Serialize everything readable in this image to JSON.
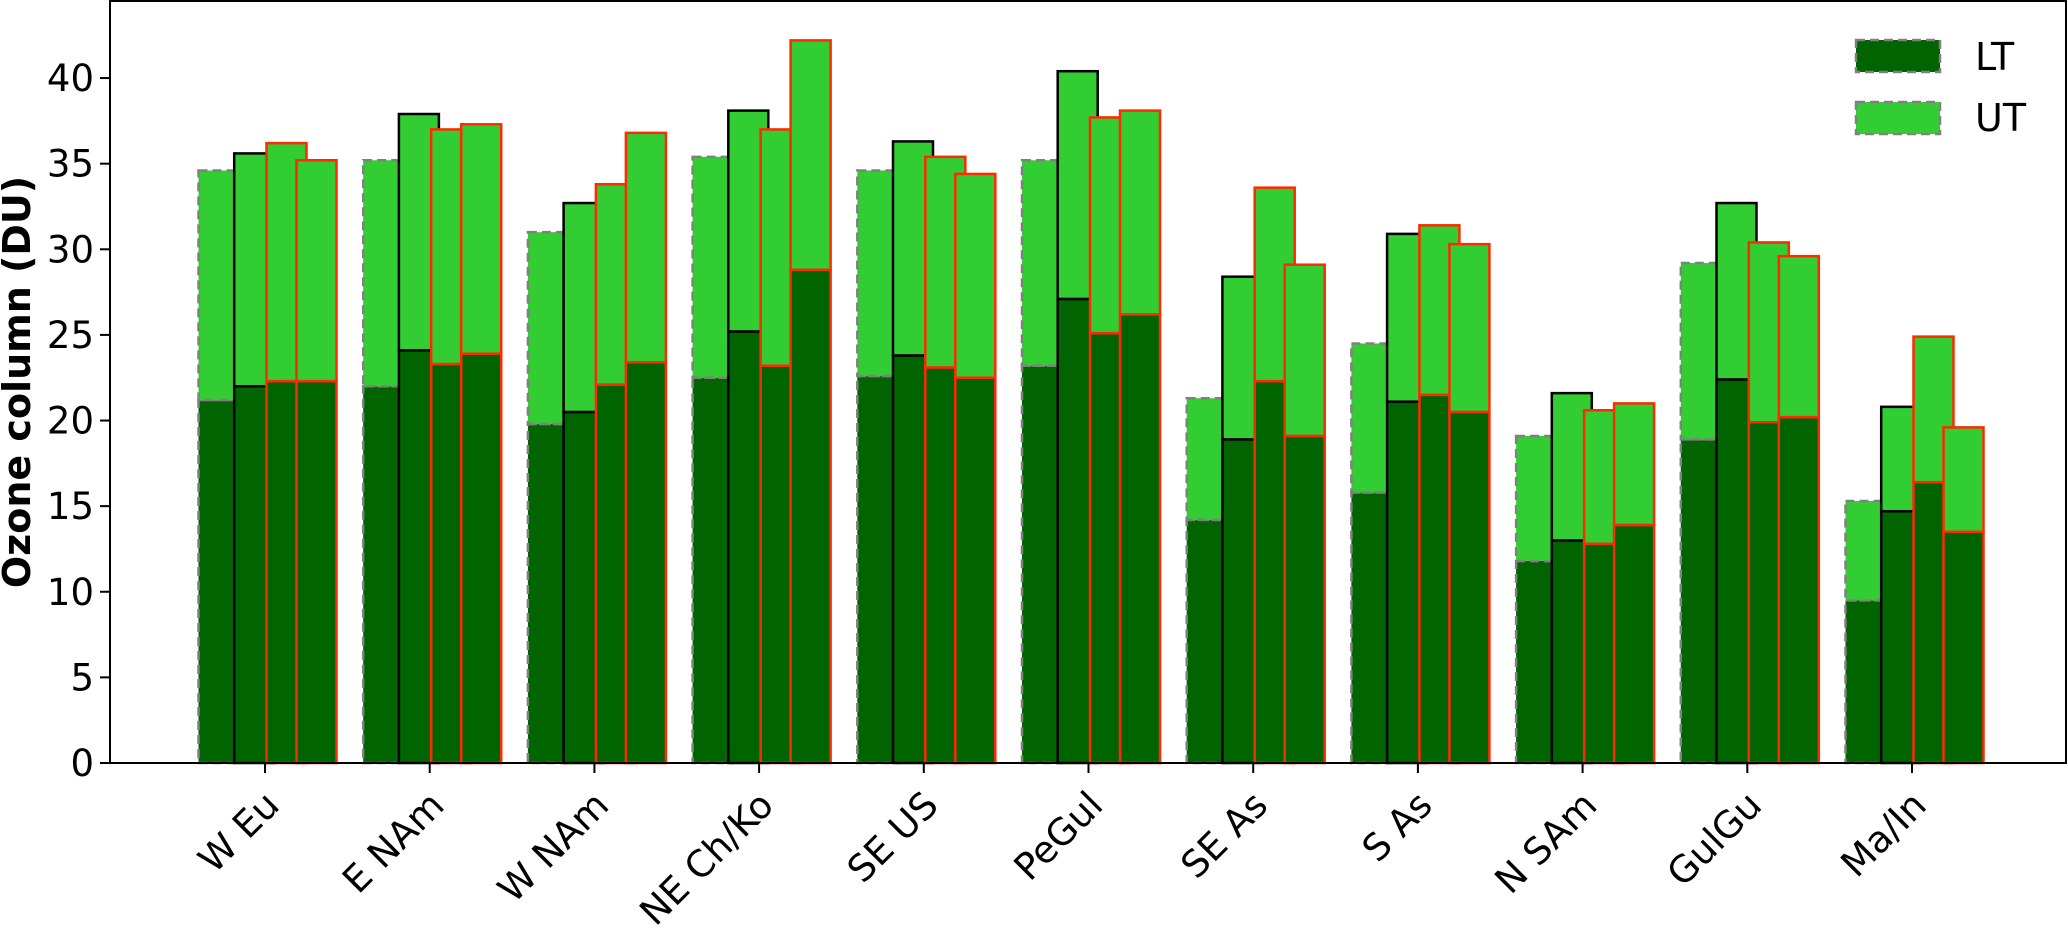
{
  "chart_data": {
    "type": "bar",
    "stacked": true,
    "ylabel": "Ozone column (DU)",
    "ylim": [
      0,
      44.5
    ],
    "yticks": [
      0,
      5,
      10,
      15,
      20,
      25,
      30,
      35,
      40
    ],
    "grid": false,
    "legend": {
      "placement": "top-right",
      "entries": [
        {
          "label": "LT",
          "color": "#006400"
        },
        {
          "label": "UT",
          "color": "#32cd32"
        }
      ]
    },
    "categories": [
      "W Eu",
      "E NAm",
      "W NAm",
      "NE Ch/Ko",
      "SE US",
      "PeGul",
      "SE As",
      "S As",
      "N SAm",
      "GulGu",
      "Ma/In"
    ],
    "bars_per_category": 4,
    "bar_edge_styles": [
      "gray-dashed",
      "black",
      "red",
      "red"
    ],
    "lt_values": [
      [
        21.2,
        22.0,
        22.3,
        22.3
      ],
      [
        22.0,
        24.1,
        23.3,
        23.9
      ],
      [
        19.8,
        20.5,
        22.1,
        23.4
      ],
      [
        22.5,
        25.2,
        23.2,
        28.8
      ],
      [
        22.6,
        23.8,
        23.1,
        22.5
      ],
      [
        23.2,
        27.1,
        25.1,
        26.2
      ],
      [
        14.2,
        18.9,
        22.3,
        19.1
      ],
      [
        15.8,
        21.1,
        21.5,
        20.5
      ],
      [
        11.8,
        13.0,
        12.8,
        13.9
      ],
      [
        18.9,
        22.4,
        19.9,
        20.2
      ],
      [
        9.5,
        14.7,
        16.4,
        13.5
      ]
    ],
    "total_values": [
      [
        34.6,
        35.6,
        36.2,
        35.2
      ],
      [
        35.2,
        37.9,
        37.0,
        37.3
      ],
      [
        31.0,
        32.7,
        33.8,
        36.8
      ],
      [
        35.4,
        38.1,
        37.0,
        42.2
      ],
      [
        34.6,
        36.3,
        35.4,
        34.4
      ],
      [
        35.2,
        40.4,
        37.7,
        38.1
      ],
      [
        21.3,
        28.4,
        33.6,
        29.1
      ],
      [
        24.5,
        30.9,
        31.4,
        30.3
      ],
      [
        19.1,
        21.6,
        20.6,
        21.0
      ],
      [
        29.2,
        32.7,
        30.4,
        29.6
      ],
      [
        15.3,
        20.8,
        24.9,
        19.6
      ]
    ],
    "colors": {
      "lt": "#006400",
      "ut": "#32cd32",
      "edge_gray": "#808080",
      "edge_black": "#000000",
      "edge_red": "#ff2a00"
    }
  }
}
